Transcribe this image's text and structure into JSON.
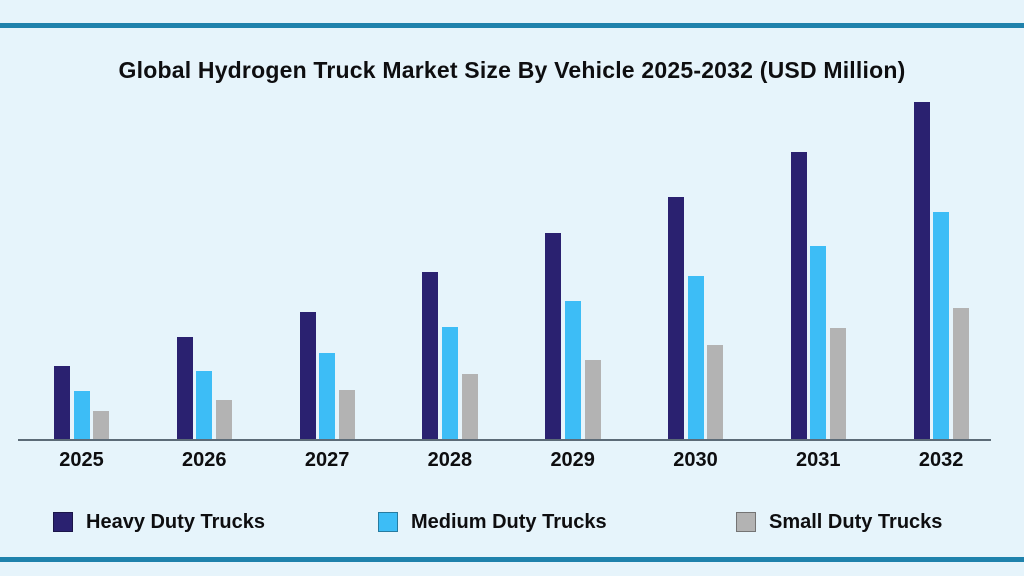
{
  "page": {
    "background_color": "#e6f4fb",
    "accent_line_color": "#1f82ac",
    "axis_line_color": "#5c6b77",
    "text_color": "#0e0e10"
  },
  "chart_data": {
    "type": "bar",
    "title": "Global Hydrogen Truck Market Size By Vehicle 2025-2032 (USD Million)",
    "categories": [
      "2025",
      "2026",
      "2027",
      "2028",
      "2029",
      "2030",
      "2031",
      "2032"
    ],
    "series": [
      {
        "name": "Heavy Duty Trucks",
        "color": "#2a2170",
        "values": [
          74,
          103,
          128,
          168,
          207,
          243,
          288,
          338
        ]
      },
      {
        "name": "Medium Duty Trucks",
        "color": "#3dbdf6",
        "values": [
          49,
          69,
          87,
          113,
          139,
          164,
          194,
          228
        ]
      },
      {
        "name": "Small Duty Trucks",
        "color": "#b3b3b3",
        "values": [
          29,
          40,
          50,
          66,
          80,
          95,
          112,
          132
        ]
      }
    ],
    "xlabel": "",
    "ylabel": "",
    "ylim": [
      0,
      360
    ],
    "y_axis_visible": false,
    "x_axis_line": true,
    "gridlines": false,
    "legend_position": "bottom",
    "value_unit_note": "No y-axis scale or data labels shown; values are relative bar heights estimated from pixels"
  }
}
